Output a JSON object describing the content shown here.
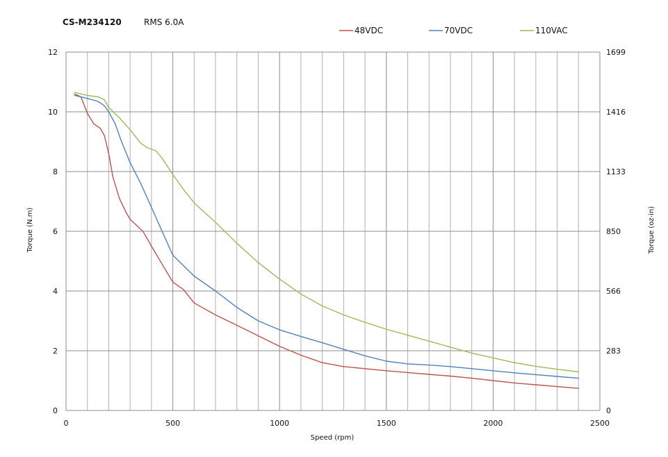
{
  "header": {
    "model": "CS-M234120",
    "rms": "RMS  6.0A"
  },
  "chart_data": {
    "type": "line",
    "xlabel": "Speed (rpm)",
    "ylabel": "Torque (N.m)",
    "y2label": "Torque (oz-in)",
    "xlim": [
      0,
      2500
    ],
    "ylim": [
      0,
      12
    ],
    "x_ticks": [
      0,
      500,
      1000,
      1500,
      2000,
      2500
    ],
    "x_minor_step": 100,
    "y_ticks": [
      0,
      2,
      4,
      6,
      8,
      10,
      12
    ],
    "y2_tick_labels": [
      "0",
      "283",
      "566",
      "850",
      "1133",
      "1416",
      "1699"
    ],
    "grid": true,
    "legend_position": "top-right",
    "series": [
      {
        "name": "48VDC",
        "color": "#c0504d",
        "x": [
          40,
          70,
          100,
          130,
          160,
          180,
          200,
          220,
          250,
          280,
          300,
          330,
          360,
          400,
          450,
          500,
          550,
          600,
          700,
          800,
          900,
          1000,
          1100,
          1200,
          1300,
          1400,
          1500,
          1600,
          1700,
          1800,
          1900,
          2000,
          2100,
          2200,
          2300,
          2400
        ],
        "y": [
          10.6,
          10.5,
          9.95,
          9.6,
          9.45,
          9.2,
          8.6,
          7.8,
          7.1,
          6.65,
          6.4,
          6.2,
          6.0,
          5.5,
          4.9,
          4.3,
          4.05,
          3.6,
          3.2,
          2.85,
          2.5,
          2.15,
          1.85,
          1.6,
          1.47,
          1.4,
          1.33,
          1.27,
          1.21,
          1.15,
          1.08,
          1.0,
          0.92,
          0.86,
          0.8,
          0.74
        ]
      },
      {
        "name": "70VDC",
        "color": "#4f81bd",
        "x": [
          40,
          100,
          150,
          180,
          200,
          230,
          260,
          300,
          350,
          400,
          450,
          500,
          550,
          600,
          700,
          800,
          900,
          1000,
          1100,
          1200,
          1300,
          1400,
          1500,
          1600,
          1700,
          1800,
          1900,
          2000,
          2100,
          2200,
          2300,
          2400
        ],
        "y": [
          10.55,
          10.45,
          10.35,
          10.2,
          10.0,
          9.6,
          9.0,
          8.3,
          7.6,
          6.8,
          6.0,
          5.2,
          4.85,
          4.5,
          4.0,
          3.45,
          3.0,
          2.7,
          2.48,
          2.27,
          2.05,
          1.83,
          1.65,
          1.56,
          1.52,
          1.47,
          1.4,
          1.33,
          1.26,
          1.2,
          1.14,
          1.08
        ]
      },
      {
        "name": "110VAC",
        "color": "#9bbb59",
        "x": [
          40,
          100,
          150,
          180,
          200,
          250,
          300,
          350,
          380,
          420,
          450,
          500,
          550,
          600,
          700,
          800,
          900,
          1000,
          1100,
          1200,
          1300,
          1400,
          1500,
          1600,
          1700,
          1800,
          1900,
          2000,
          2100,
          2200,
          2300,
          2400
        ],
        "y": [
          10.65,
          10.55,
          10.5,
          10.4,
          10.15,
          9.8,
          9.4,
          8.95,
          8.8,
          8.7,
          8.45,
          7.9,
          7.4,
          6.95,
          6.3,
          5.6,
          4.95,
          4.4,
          3.9,
          3.5,
          3.2,
          2.95,
          2.72,
          2.52,
          2.32,
          2.12,
          1.92,
          1.76,
          1.6,
          1.48,
          1.38,
          1.29
        ]
      }
    ]
  }
}
